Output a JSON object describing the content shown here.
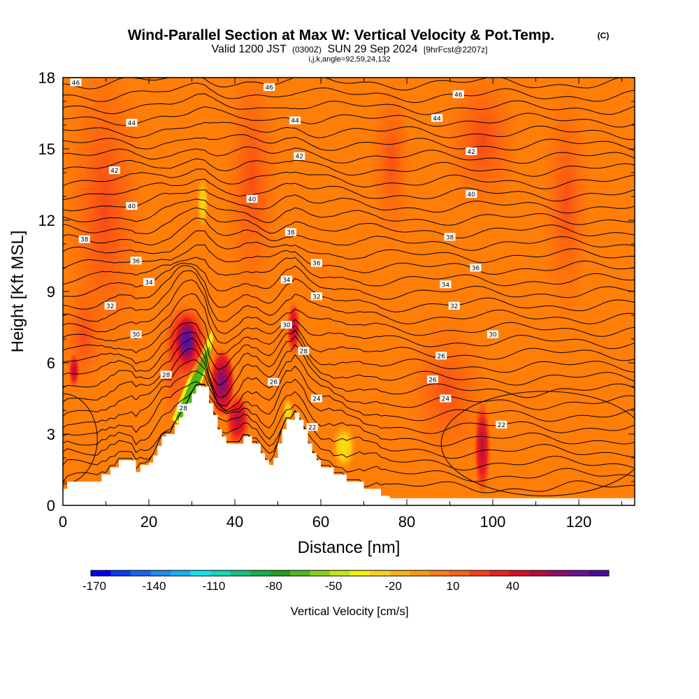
{
  "header": {
    "title": "Wind-Parallel Section at Max W: Vertical Velocity & Pot.Temp.",
    "copyright": "(C)",
    "valid_prefix": "Valid 1200 JST",
    "valid_utc": "(0300Z)",
    "valid_date": "SUN 29 Sep 2024",
    "forecast": "[9hrFcst@2207z]",
    "indices": "i,j,k,angle=92,59,24,132"
  },
  "chart_data": {
    "type": "heatmap",
    "title": "Wind-Parallel Section at Max W: Vertical Velocity & Pot.Temp.",
    "xlabel": "Distance [nm]",
    "ylabel": "Height [Kft MSL]",
    "xlim": [
      0,
      133
    ],
    "ylim": [
      0,
      18
    ],
    "x_ticks": [
      "0",
      "20",
      "40",
      "60",
      "80",
      "100",
      "120"
    ],
    "y_ticks": [
      "0",
      "3",
      "6",
      "9",
      "12",
      "15",
      "18"
    ],
    "terrain_profile": [
      [
        0,
        0.7
      ],
      [
        1,
        1.0
      ],
      [
        6,
        1.0
      ],
      [
        9,
        1.3
      ],
      [
        11,
        1.6
      ],
      [
        13,
        1.9
      ],
      [
        16,
        1.9
      ],
      [
        17,
        1.4
      ],
      [
        18,
        1.7
      ],
      [
        20,
        1.8
      ],
      [
        21,
        2.1
      ],
      [
        22,
        2.5
      ],
      [
        23,
        2.9
      ],
      [
        24,
        3.0
      ],
      [
        25,
        3.0
      ],
      [
        26,
        3.4
      ],
      [
        27,
        3.7
      ],
      [
        28,
        4.0
      ],
      [
        29,
        4.3
      ],
      [
        30,
        4.7
      ],
      [
        31,
        5.0
      ],
      [
        33,
        5.0
      ],
      [
        34,
        4.3
      ],
      [
        35,
        3.8
      ],
      [
        36,
        3.2
      ],
      [
        37,
        2.9
      ],
      [
        38,
        2.6
      ],
      [
        40,
        2.6
      ],
      [
        42,
        2.9
      ],
      [
        44,
        2.6
      ],
      [
        46,
        2.2
      ],
      [
        47,
        1.9
      ],
      [
        48,
        1.7
      ],
      [
        49,
        2.0
      ],
      [
        50,
        2.6
      ],
      [
        51,
        3.2
      ],
      [
        52,
        3.6
      ],
      [
        54,
        3.9
      ],
      [
        55,
        3.6
      ],
      [
        56,
        3.2
      ],
      [
        57,
        2.6
      ],
      [
        58,
        2.2
      ],
      [
        59,
        1.9
      ],
      [
        60,
        1.6
      ],
      [
        62,
        1.6
      ],
      [
        63,
        1.3
      ],
      [
        65,
        1.3
      ],
      [
        66,
        1.0
      ],
      [
        69,
        1.0
      ],
      [
        70,
        0.7
      ],
      [
        73,
        0.7
      ],
      [
        74,
        0.4
      ],
      [
        76,
        0.3
      ],
      [
        133,
        0.3
      ]
    ],
    "theta_contours": {
      "unit": "potential temperature",
      "labels": [
        {
          "text": "46",
          "x": 3,
          "y": 17.8
        },
        {
          "text": "46",
          "x": 48,
          "y": 17.6
        },
        {
          "text": "46",
          "x": 92,
          "y": 17.3
        },
        {
          "text": "44",
          "x": 16,
          "y": 16.1
        },
        {
          "text": "44",
          "x": 54,
          "y": 16.2
        },
        {
          "text": "44",
          "x": 87,
          "y": 16.3
        },
        {
          "text": "42",
          "x": 12,
          "y": 14.1
        },
        {
          "text": "42",
          "x": 55,
          "y": 14.7
        },
        {
          "text": "42",
          "x": 95,
          "y": 14.9
        },
        {
          "text": "40",
          "x": 16,
          "y": 12.6
        },
        {
          "text": "40",
          "x": 44,
          "y": 12.9
        },
        {
          "text": "40",
          "x": 95,
          "y": 13.1
        },
        {
          "text": "38",
          "x": 5,
          "y": 11.2
        },
        {
          "text": "38",
          "x": 53,
          "y": 11.5
        },
        {
          "text": "38",
          "x": 90,
          "y": 11.3
        },
        {
          "text": "36",
          "x": 17,
          "y": 10.3
        },
        {
          "text": "36",
          "x": 59,
          "y": 10.2
        },
        {
          "text": "36",
          "x": 96,
          "y": 10.0
        },
        {
          "text": "34",
          "x": 20,
          "y": 9.4
        },
        {
          "text": "34",
          "x": 52,
          "y": 9.5
        },
        {
          "text": "34",
          "x": 89,
          "y": 9.3
        },
        {
          "text": "32",
          "x": 11,
          "y": 8.4
        },
        {
          "text": "32",
          "x": 59,
          "y": 8.8
        },
        {
          "text": "32",
          "x": 91,
          "y": 8.4
        },
        {
          "text": "30",
          "x": 17,
          "y": 7.2
        },
        {
          "text": "30",
          "x": 52,
          "y": 7.6
        },
        {
          "text": "30",
          "x": 100,
          "y": 7.2
        },
        {
          "text": "28",
          "x": 24,
          "y": 5.5
        },
        {
          "text": "28",
          "x": 28,
          "y": 4.1
        },
        {
          "text": "28",
          "x": 56,
          "y": 6.5
        },
        {
          "text": "26",
          "x": 49,
          "y": 5.2
        },
        {
          "text": "26",
          "x": 88,
          "y": 6.3
        },
        {
          "text": "26",
          "x": 86,
          "y": 5.3
        },
        {
          "text": "24",
          "x": 59,
          "y": 4.5
        },
        {
          "text": "24",
          "x": 89,
          "y": 4.5
        },
        {
          "text": "22",
          "x": 58,
          "y": 3.3
        },
        {
          "text": "22",
          "x": 102,
          "y": 3.4
        }
      ]
    },
    "wmax_cell": {
      "center_x": 28.5,
      "center_y": 6.8,
      "value": "50+"
    },
    "wmin_band": {
      "x_from": 26,
      "x_to": 33,
      "y_from": 3.9,
      "y_to": 7.0,
      "value": "-100"
    }
  },
  "colorbar": {
    "label": "Vertical Velocity [cm/s]",
    "tick_labels": [
      "-170",
      "-140",
      "-110",
      "-80",
      "-50",
      "-20",
      "10",
      "40"
    ],
    "colors": [
      "#0000f0",
      "#0a3cf5",
      "#1764f5",
      "#1e8cf0",
      "#10b4f0",
      "#0ee6f0",
      "#11d8b8",
      "#10c484",
      "#12b24e",
      "#20a020",
      "#52b816",
      "#8cd211",
      "#c3e60f",
      "#f5f00a",
      "#ffd210",
      "#ffb40f",
      "#ff9a0a",
      "#ff7e08",
      "#ff6410",
      "#f84018",
      "#ee1e1e",
      "#d80c28",
      "#b40c40",
      "#8e0e66",
      "#6a1194",
      "#4a0ca0"
    ]
  }
}
